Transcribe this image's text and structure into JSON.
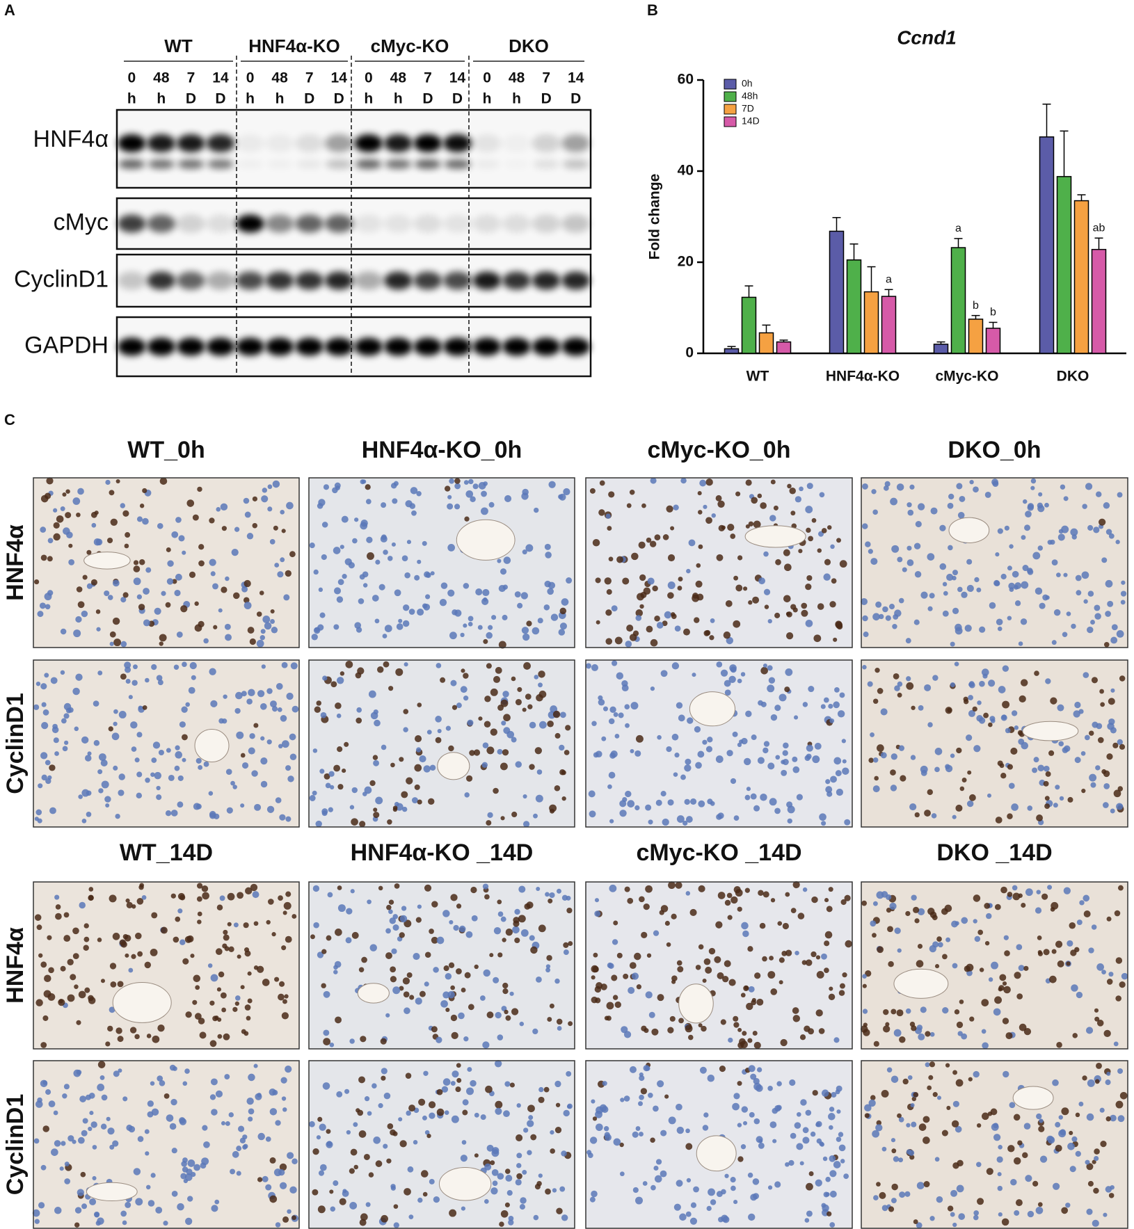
{
  "panels": {
    "a": "A",
    "b": "B",
    "c": "C"
  },
  "blot": {
    "groups": [
      "WT",
      "HNF4α-KO",
      "cMyc-KO",
      "DKO"
    ],
    "lanes": [
      [
        "0",
        "h"
      ],
      [
        "48",
        "h"
      ],
      [
        "7",
        "D"
      ],
      [
        "14",
        "D"
      ]
    ],
    "proteins": [
      "HNF4α",
      "cMyc",
      "CyclinD1",
      "GAPDH"
    ]
  },
  "chart_data": {
    "type": "bar",
    "title": "Ccnd1",
    "ylabel": "Fold change",
    "categories": [
      "WT",
      "HNF4α-KO",
      "cMyc-KO",
      "DKO"
    ],
    "series": [
      {
        "name": "0h",
        "color": "#5b5ca8",
        "values": [
          1,
          26.8,
          2,
          47.5
        ],
        "errors": [
          0.5,
          3,
          0.5,
          7.2
        ],
        "letters": [
          null,
          null,
          null,
          null
        ]
      },
      {
        "name": "48h",
        "color": "#4fb04a",
        "values": [
          12.3,
          20.5,
          23.2,
          38.8
        ],
        "errors": [
          2.5,
          3.5,
          2,
          10
        ],
        "letters": [
          null,
          null,
          "a",
          null
        ]
      },
      {
        "name": "7D",
        "color": "#f5a142",
        "values": [
          4.5,
          13.5,
          7.5,
          33.5
        ],
        "errors": [
          1.7,
          5.5,
          0.8,
          1.3
        ],
        "letters": [
          null,
          null,
          "b",
          null
        ]
      },
      {
        "name": "14D",
        "color": "#d65aa8",
        "values": [
          2.5,
          12.5,
          5.5,
          22.8
        ],
        "errors": [
          0.4,
          1.5,
          1.3,
          2.5
        ],
        "letters": [
          null,
          "a",
          "b",
          "ab"
        ]
      }
    ],
    "ylim": [
      0,
      60
    ],
    "yticks": [
      0,
      20,
      40,
      60
    ],
    "grid": false,
    "legend": "upper-left"
  },
  "histology": {
    "sections": [
      {
        "titles": [
          "WT_0h",
          "HNF4α-KO_0h",
          "cMyc-KO_0h",
          "DKO_0h"
        ],
        "stains": [
          "HNF4α",
          "CyclinD1"
        ]
      },
      {
        "titles": [
          "WT_14D",
          "HNF4α-KO _14D",
          "cMyc-KO _14D",
          "DKO _14D"
        ],
        "stains": [
          "HNF4α",
          "CyclinD1"
        ]
      }
    ]
  }
}
